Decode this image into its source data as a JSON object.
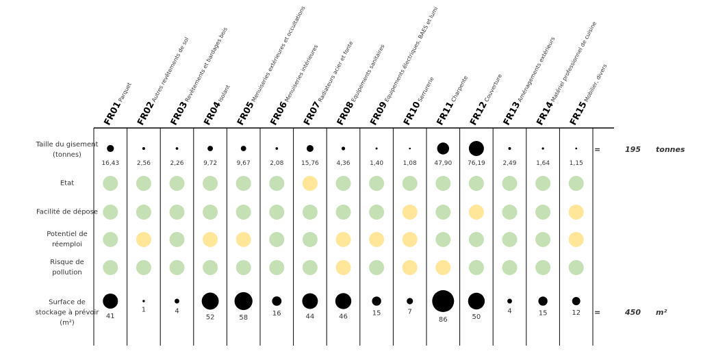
{
  "chart_data": {
    "type": "bubble-matrix",
    "categories": [
      "FR01",
      "FR02",
      "FR03",
      "FR04",
      "FR05",
      "FR06",
      "FR07",
      "FR08",
      "FR09",
      "FR10",
      "FR11",
      "FR12",
      "FR13",
      "FR14",
      "FR15"
    ],
    "category_labels": [
      "Parquet",
      "Autres revêtements de sol",
      "Revêtements et bardages bois",
      "Isolant",
      "Menuiseries extérieures et occultations",
      "Menuiseries intérieures",
      "Radiateurs acier et fonte",
      "Equipements sanitaires",
      "Equipements électriques, BAES et lumi",
      "Serrurerie",
      "Charpente",
      "Couverture",
      "Aménagements extérieurs",
      "Matériel professionnel de cuisine",
      "Mobilier, divers"
    ],
    "size_rows": [
      {
        "label": "Taille du gisement (tonnes)",
        "values": [
          16.43,
          2.56,
          2.26,
          9.72,
          9.67,
          2.08,
          15.76,
          4.36,
          1.4,
          1.08,
          47.9,
          76.19,
          2.49,
          1.64,
          1.15
        ],
        "value_labels": [
          "16,43",
          "2,56",
          "2,26",
          "9,72",
          "9,67",
          "2,08",
          "15,76",
          "4,36",
          "1,40",
          "1,08",
          "47,90",
          "76,19",
          "2,49",
          "1,64",
          "1,15"
        ],
        "total_sign": "=",
        "total": 195,
        "unit": "tonnes",
        "color": "#000000"
      },
      {
        "label": "Surface de stockage à prévoir (m²)",
        "values": [
          41,
          1,
          4,
          52,
          58,
          16,
          44,
          46,
          15,
          7,
          86,
          50,
          4,
          15,
          12
        ],
        "total_sign": "=",
        "total": 450,
        "unit": "m²",
        "color": "#000000"
      }
    ],
    "rating_rows": [
      {
        "label": "Etat",
        "colors": [
          "#c5e0b4",
          "#c5e0b4",
          "#c5e0b4",
          "#c5e0b4",
          "#c5e0b4",
          "#c5e0b4",
          "#ffe699",
          "#c5e0b4",
          "#c5e0b4",
          "#c5e0b4",
          "#c5e0b4",
          "#c5e0b4",
          "#c5e0b4",
          "#c5e0b4",
          "#c5e0b4"
        ]
      },
      {
        "label": "Facilité de dépose",
        "colors": [
          "#c5e0b4",
          "#c5e0b4",
          "#c5e0b4",
          "#c5e0b4",
          "#c5e0b4",
          "#c5e0b4",
          "#c5e0b4",
          "#c5e0b4",
          "#c5e0b4",
          "#ffe699",
          "#c5e0b4",
          "#ffe699",
          "#c5e0b4",
          "#c5e0b4",
          "#ffe699"
        ]
      },
      {
        "label": "Potentiel de réemploi",
        "colors": [
          "#c5e0b4",
          "#ffe699",
          "#c5e0b4",
          "#ffe699",
          "#ffe699",
          "#c5e0b4",
          "#c5e0b4",
          "#ffe699",
          "#ffe699",
          "#ffe699",
          "#c5e0b4",
          "#c5e0b4",
          "#c5e0b4",
          "#c5e0b4",
          "#ffe699"
        ]
      },
      {
        "label": "Risque de pollution",
        "colors": [
          "#c5e0b4",
          "#c5e0b4",
          "#c5e0b4",
          "#c5e0b4",
          "#c5e0b4",
          "#c5e0b4",
          "#c5e0b4",
          "#ffe699",
          "#c5e0b4",
          "#ffe699",
          "#ffe699",
          "#c5e0b4",
          "#c5e0b4",
          "#c5e0b4",
          "#c5e0b4"
        ]
      }
    ]
  }
}
